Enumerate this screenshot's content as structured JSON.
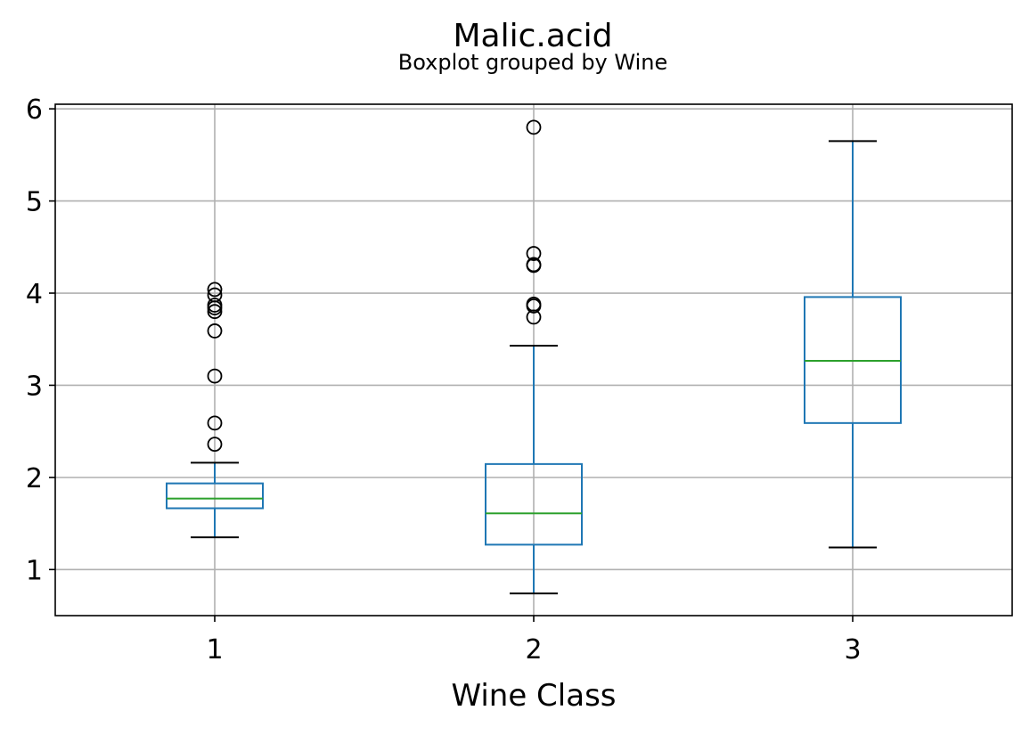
{
  "chart_data": {
    "type": "boxplot",
    "title": "Malic.acid",
    "subtitle": "Boxplot grouped by Wine",
    "xlabel": "Wine Class",
    "ylabel": "",
    "categories": [
      "1",
      "2",
      "3"
    ],
    "ylim": [
      0.5,
      6.05
    ],
    "yticks": [
      1,
      2,
      3,
      4,
      5,
      6
    ],
    "ytick_labels": [
      "1",
      "2",
      "3",
      "4",
      "5",
      "6"
    ],
    "grid": true,
    "boxes": [
      {
        "category": "1",
        "whisker_low": 1.35,
        "q1": 1.665,
        "median": 1.77,
        "q3": 1.935,
        "whisker_high": 2.16,
        "outliers": [
          2.36,
          2.59,
          3.1,
          3.59,
          3.8,
          3.84,
          3.87,
          3.98,
          4.04
        ]
      },
      {
        "category": "2",
        "whisker_low": 0.74,
        "q1": 1.27,
        "median": 1.61,
        "q3": 2.145,
        "whisker_high": 3.43,
        "outliers": [
          3.74,
          3.86,
          3.88,
          4.3,
          4.31,
          4.43,
          5.8
        ]
      },
      {
        "category": "3",
        "whisker_low": 1.24,
        "q1": 2.59,
        "median": 3.265,
        "q3": 3.9575,
        "whisker_high": 5.65,
        "outliers": []
      }
    ],
    "colors": {
      "box": "#1f77b4",
      "median": "#2ca02c",
      "whisker_cap": "#000000",
      "outlier": "#000000",
      "grid": "#b0b0b0",
      "axes": "#000000"
    }
  }
}
